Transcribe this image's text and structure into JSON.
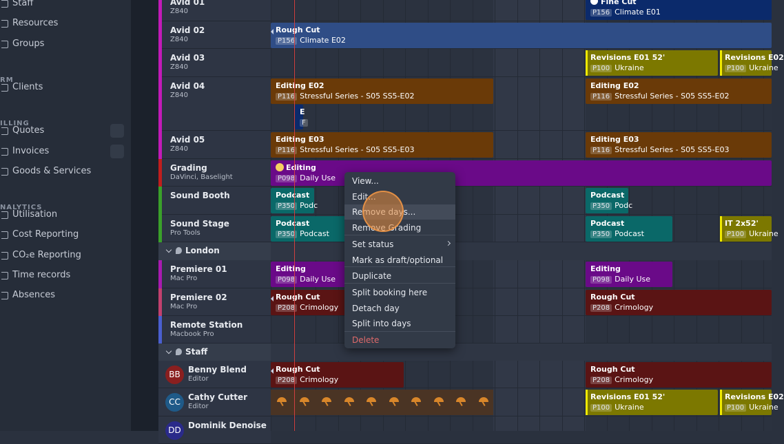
{
  "sidebar": [
    {
      "items": [
        "Staff",
        "Resources",
        "Groups"
      ]
    },
    {
      "heading": "RM",
      "items": [
        "Clients"
      ]
    },
    {
      "heading": "ILLING",
      "items": [
        "Quotes",
        "Invoices",
        "Goods & Services"
      ]
    },
    {
      "heading": "NALYTICS",
      "items": [
        "Utilisation",
        "Cost Reporting",
        "CO₂e Reporting",
        "Time records",
        "Absences"
      ]
    }
  ],
  "rows": [
    {
      "name": "Avid 01",
      "detail": "Z840",
      "bookings": [
        {
          "title": "Fine Cut",
          "code": "P156",
          "subtitle": "Climate E01",
          "color": "#0b2a6b"
        }
      ]
    },
    {
      "name": "Avid 02",
      "detail": "Z840",
      "bookings": [
        {
          "title": "Rough Cut",
          "code": "P156",
          "subtitle": "Climate E02",
          "color": "#2f4d86"
        }
      ]
    },
    {
      "name": "Avid 03",
      "detail": "Z840",
      "bookings": [
        {
          "title": "Revisions E01 52'",
          "code": "P100",
          "subtitle": "Ukraine",
          "color": "#7c7800"
        },
        {
          "title": "Revisions E02",
          "code": "P100",
          "subtitle": "Ukraine",
          "color": "#7c7800"
        }
      ]
    },
    {
      "name": "Avid 04",
      "detail": "Z840",
      "bookings": [
        {
          "title": "Editing E02",
          "code": "P116",
          "subtitle": "Stressful Series - S05 SS5-E02",
          "color": "#6a3a08"
        },
        {
          "title": "Editing E02",
          "code": "P116",
          "subtitle": "Stressful Series - S05 SS5-E02",
          "color": "#6a3a08"
        },
        {
          "title": "E",
          "code": "F",
          "subtitle": "",
          "color": "#0b2a6b"
        }
      ]
    },
    {
      "name": "Avid 05",
      "detail": "Z840",
      "bookings": [
        {
          "title": "Editing E03",
          "code": "P116",
          "subtitle": "Stressful Series - S05 SS5-E03",
          "color": "#6a3a08"
        },
        {
          "title": "Editing E03",
          "code": "P116",
          "subtitle": "Stressful Series - S05 SS5-E03",
          "color": "#6a3a08"
        }
      ]
    },
    {
      "name": "Grading",
      "detail": "DaVinci, Baselight",
      "bookings": [
        {
          "title": "Editing",
          "code": "P098",
          "subtitle": "Daily Use",
          "color": "#6a0a88"
        }
      ]
    },
    {
      "name": "Sound Booth",
      "detail": "",
      "bookings": [
        {
          "title": "Podcast",
          "code": "P350",
          "subtitle": "Podc",
          "color": "#0a6868"
        },
        {
          "title": "Podcast",
          "code": "P350",
          "subtitle": "Podc",
          "color": "#0a6868"
        }
      ]
    },
    {
      "name": "Sound Stage",
      "detail": "Pro Tools",
      "bookings": [
        {
          "title": "Podcast",
          "code": "P350",
          "subtitle": "Podcast",
          "color": "#0a6868"
        },
        {
          "title": "Podcast",
          "code": "P350",
          "subtitle": "Podcast",
          "color": "#0a6868"
        },
        {
          "title": "IT 2x52'",
          "code": "P100",
          "subtitle": "Ukraine",
          "color": "#7c7800"
        }
      ]
    },
    {
      "group": "London"
    },
    {
      "name": "Premiere 01",
      "detail": "Mac Pro",
      "bookings": [
        {
          "title": "Editing",
          "code": "P098",
          "subtitle": "Daily Use",
          "color": "#6a0a88"
        },
        {
          "title": "Editing",
          "code": "P098",
          "subtitle": "Daily Use",
          "color": "#6a0a88"
        }
      ]
    },
    {
      "name": "Premiere 02",
      "detail": "Mac Pro",
      "bookings": [
        {
          "title": "Rough Cut",
          "code": "P208",
          "subtitle": "Crimology",
          "color": "#5a1414"
        },
        {
          "title": "Rough Cut",
          "code": "P208",
          "subtitle": "Crimology",
          "color": "#5a1414"
        }
      ]
    },
    {
      "name": "Remote Station",
      "detail": "Macbook Pro",
      "bookings": []
    },
    {
      "group": "Staff"
    },
    {
      "name": "Benny Blend",
      "detail": "Editor",
      "avatar": "BB",
      "bookings": [
        {
          "title": "Rough Cut",
          "code": "P208",
          "subtitle": "Crimology",
          "color": "#5a1414"
        },
        {
          "title": "Rough Cut",
          "code": "P208",
          "subtitle": "Crimology",
          "color": "#5a1414"
        }
      ]
    },
    {
      "name": "Cathy Cutter",
      "detail": "Editor",
      "avatar": "CC",
      "bookings": [
        {
          "title": "Revisions E01 52'",
          "code": "P100",
          "subtitle": "Ukraine",
          "color": "#7c7800"
        },
        {
          "title": "Revisions E02",
          "code": "P100",
          "subtitle": "Ukraine",
          "color": "#7c7800"
        }
      ]
    },
    {
      "name": "Dominik Denoise",
      "detail": "",
      "avatar": "DD",
      "bookings": []
    }
  ],
  "menu": [
    "View...",
    "Edit...",
    "Remove days...",
    "Remove Grading",
    "Set status",
    "Mark as draft/optional",
    "Duplicate",
    "Split booking here",
    "Detach day",
    "Split into days",
    "Delete"
  ]
}
